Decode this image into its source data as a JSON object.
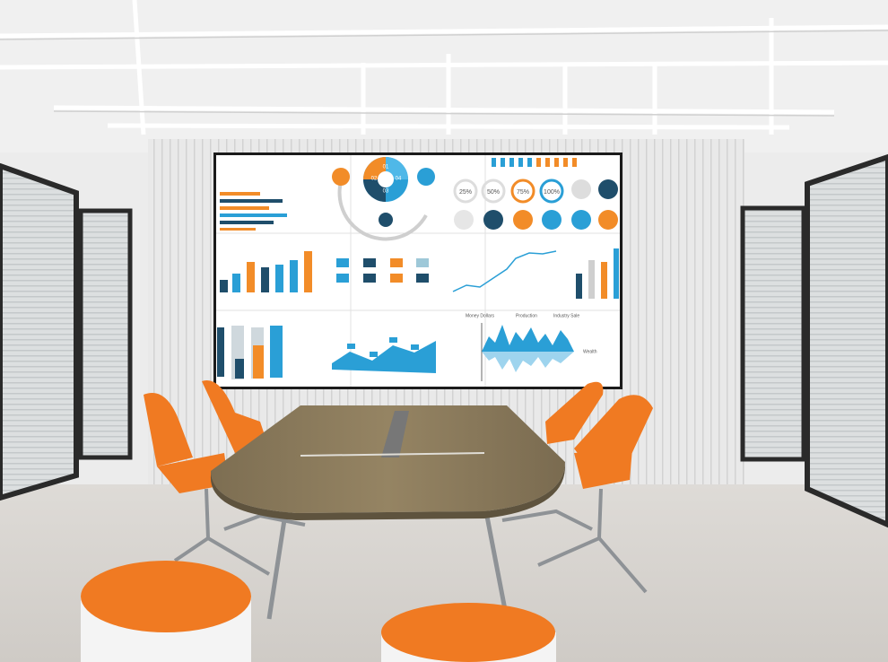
{
  "screen": {
    "percent_labels": [
      "25%",
      "50%",
      "75%",
      "100%"
    ],
    "pie_labels": [
      "01",
      "02",
      "03",
      "04"
    ],
    "wave_legend": [
      "Money Dollars",
      "Production",
      "Industry Sale"
    ],
    "wave_axis_label": "Wealth"
  }
}
